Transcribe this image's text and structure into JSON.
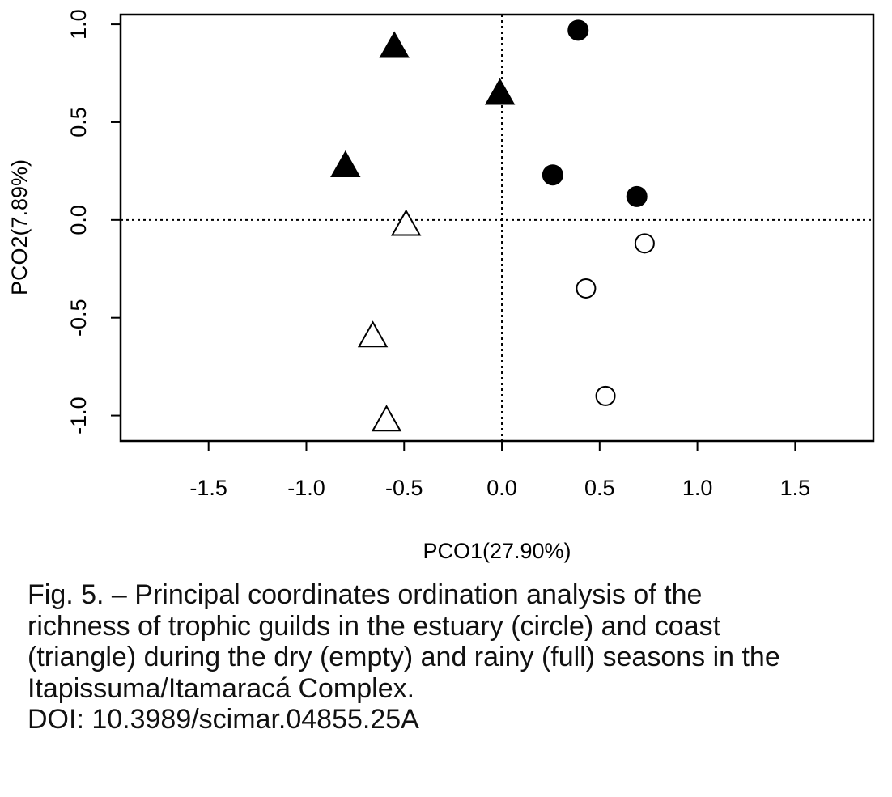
{
  "chart_data": {
    "type": "scatter",
    "title": "",
    "xlabel": "PCO1(27.90%)",
    "ylabel": "PCO2(7.89%)",
    "xlim": [
      -1.95,
      1.9
    ],
    "ylim": [
      -1.13,
      1.05
    ],
    "x_ticks": [
      -1.5,
      -1.0,
      -0.5,
      0.0,
      0.5,
      1.0,
      1.5
    ],
    "x_tick_labels": [
      "-1.5",
      "-1.0",
      "-0.5",
      "0.0",
      "0.5",
      "1.0",
      "1.5"
    ],
    "y_ticks": [
      -1.0,
      -0.5,
      0.0,
      0.5,
      1.0
    ],
    "y_tick_labels": [
      "-1.0",
      "-0.5",
      "0.0",
      "0.5",
      "1.0"
    ],
    "reference_lines": {
      "x": 0,
      "y": 0,
      "style": "dotted"
    },
    "grid": false,
    "legend": "none",
    "series": [
      {
        "marker": "triangle",
        "fill": "filled",
        "points": [
          {
            "x": -0.55,
            "y": 0.88
          },
          {
            "x": -0.01,
            "y": 0.64
          },
          {
            "x": -0.8,
            "y": 0.27
          }
        ]
      },
      {
        "marker": "circle",
        "fill": "filled",
        "points": [
          {
            "x": 0.39,
            "y": 0.97
          },
          {
            "x": 0.26,
            "y": 0.23
          },
          {
            "x": 0.69,
            "y": 0.12
          }
        ]
      },
      {
        "marker": "triangle",
        "fill": "empty",
        "points": [
          {
            "x": -0.49,
            "y": -0.03
          },
          {
            "x": -0.66,
            "y": -0.6
          },
          {
            "x": -0.59,
            "y": -1.03
          }
        ]
      },
      {
        "marker": "circle",
        "fill": "empty",
        "points": [
          {
            "x": 0.73,
            "y": -0.12
          },
          {
            "x": 0.43,
            "y": -0.35
          },
          {
            "x": 0.53,
            "y": -0.9
          }
        ]
      }
    ]
  },
  "caption": {
    "lines": [
      "Fig. 5. – Principal coordinates ordination analysis of the",
      "richness of trophic guilds in the estuary (circle) and coast",
      "(triangle) during the dry (empty) and rainy (full) seasons in the",
      "Itapissuma/Itamaracá Complex.",
      "DOI: 10.3989/scimar.04855.25A"
    ]
  },
  "colors": {
    "marker": "#000000",
    "frame": "#000000",
    "background": "#ffffff"
  }
}
